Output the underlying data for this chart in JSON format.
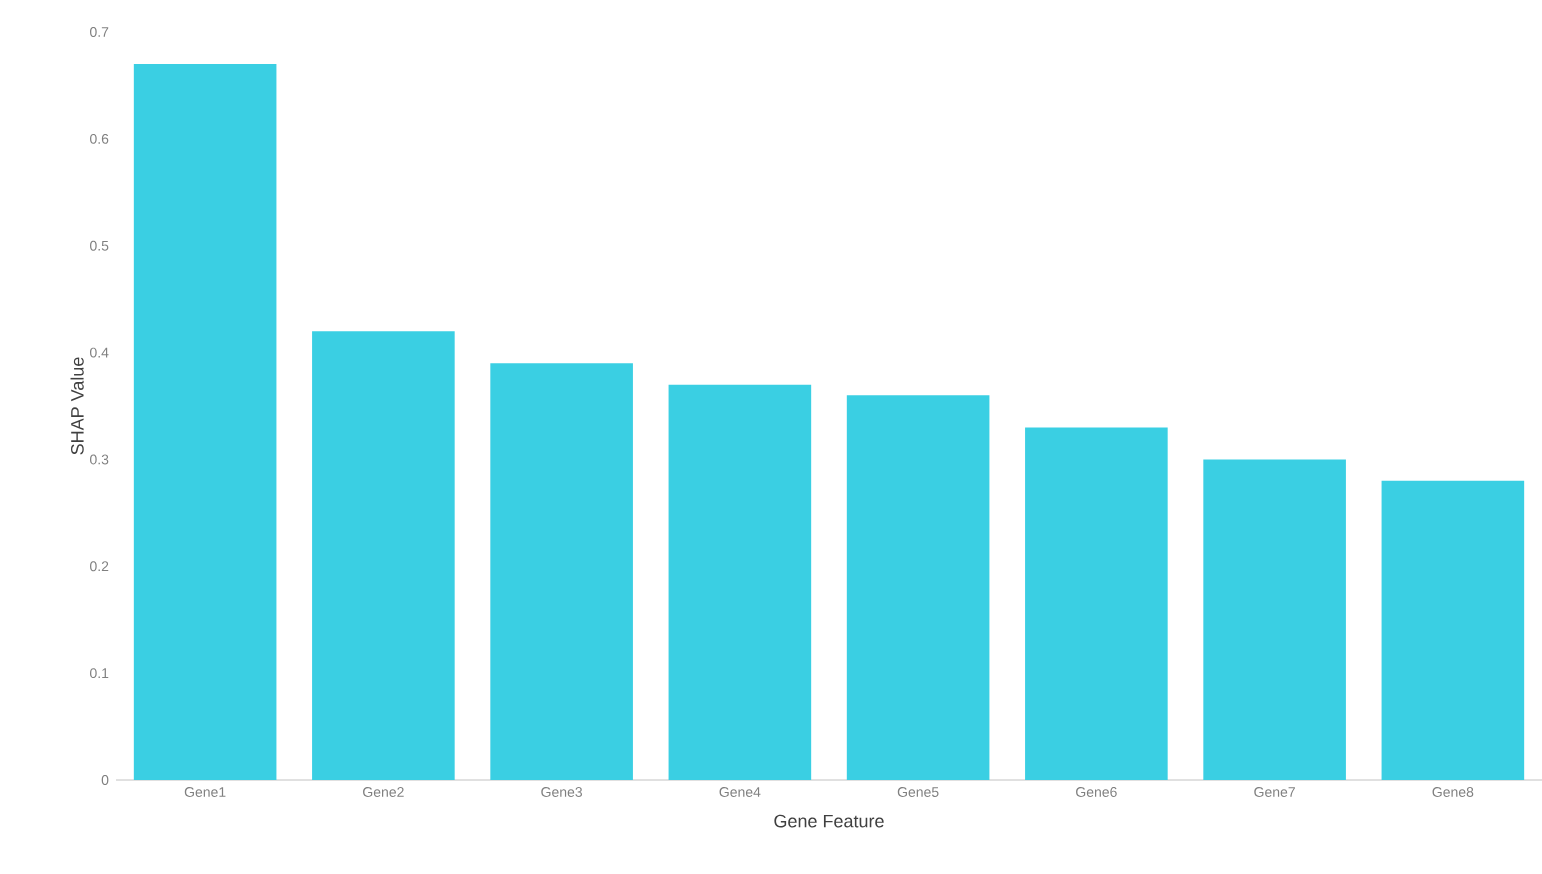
{
  "chart_data": {
    "type": "bar",
    "xlabel": "Gene Feature",
    "ylabel": "SHAP Value",
    "categories": [
      "Gene1",
      "Gene2",
      "Gene3",
      "Gene4",
      "Gene5",
      "Gene6",
      "Gene7",
      "Gene8"
    ],
    "values": [
      0.67,
      0.42,
      0.39,
      0.37,
      0.36,
      0.33,
      0.3,
      0.28
    ],
    "color": "#3acfe3",
    "ylim": [
      0,
      0.7
    ],
    "yticks": [
      0,
      0.1,
      0.2,
      0.3,
      0.4,
      0.5,
      0.6,
      0.7
    ]
  }
}
